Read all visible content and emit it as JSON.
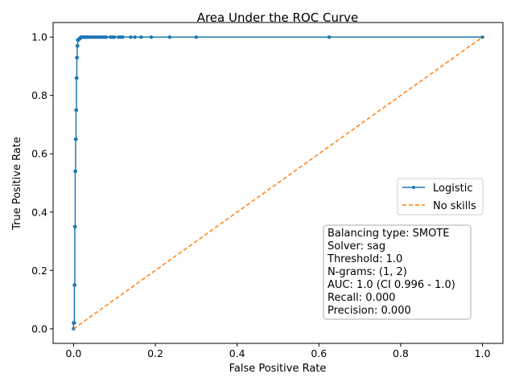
{
  "chart_data": {
    "type": "line",
    "title": "Area Under the ROC Curve",
    "xlabel": "False Positive Rate",
    "ylabel": "True Positive Rate",
    "xlim": [
      -0.05,
      1.05
    ],
    "ylim": [
      -0.05,
      1.05
    ],
    "xticks": [
      "0.0",
      "0.2",
      "0.4",
      "0.6",
      "0.8",
      "1.0"
    ],
    "yticks": [
      "0.0",
      "0.2",
      "0.4",
      "0.6",
      "0.8",
      "1.0"
    ],
    "grid": false,
    "legend_position": "center-right",
    "series": [
      {
        "name": "Logistic",
        "color": "#1f77b4",
        "style": "solid-marker",
        "x": [
          0.0,
          0.0,
          0.002,
          0.002,
          0.003,
          0.003,
          0.004,
          0.004,
          0.005,
          0.005,
          0.006,
          0.006,
          0.007,
          0.007,
          0.008,
          0.008,
          0.009,
          0.009,
          0.01,
          0.01,
          0.012,
          0.014,
          0.016,
          0.018,
          0.02,
          0.022,
          0.025,
          0.028,
          0.03,
          0.033,
          0.036,
          0.04,
          0.045,
          0.05,
          0.055,
          0.06,
          0.065,
          0.07,
          0.075,
          0.08,
          0.09,
          0.095,
          0.1,
          0.11,
          0.115,
          0.12,
          0.14,
          0.15,
          0.165,
          0.19,
          0.235,
          0.3,
          0.625,
          1.0
        ],
        "y": [
          0.0,
          0.02,
          0.02,
          0.15,
          0.15,
          0.35,
          0.35,
          0.54,
          0.54,
          0.65,
          0.65,
          0.75,
          0.75,
          0.86,
          0.86,
          0.93,
          0.93,
          0.97,
          0.97,
          0.99,
          0.99,
          0.995,
          0.995,
          1.0,
          1.0,
          1.0,
          1.0,
          1.0,
          1.0,
          1.0,
          1.0,
          1.0,
          1.0,
          1.0,
          1.0,
          1.0,
          1.0,
          1.0,
          1.0,
          1.0,
          1.0,
          1.0,
          1.0,
          1.0,
          1.0,
          1.0,
          1.0,
          1.0,
          1.0,
          1.0,
          1.0,
          1.0,
          1.0,
          1.0
        ]
      },
      {
        "name": "No skills",
        "color": "#ff7f0e",
        "style": "dashed",
        "x": [
          0.0,
          1.0
        ],
        "y": [
          0.0,
          1.0
        ]
      }
    ]
  },
  "info_box": {
    "lines": [
      "Balancing type:  SMOTE",
      "Solver:  sag",
      "Threshold:  1.0",
      "N-grams:  (1, 2)",
      "AUC:  1.0 (CI 0.996 - 1.0)",
      "Recall:  0.000",
      "Precision:  0.000"
    ]
  }
}
